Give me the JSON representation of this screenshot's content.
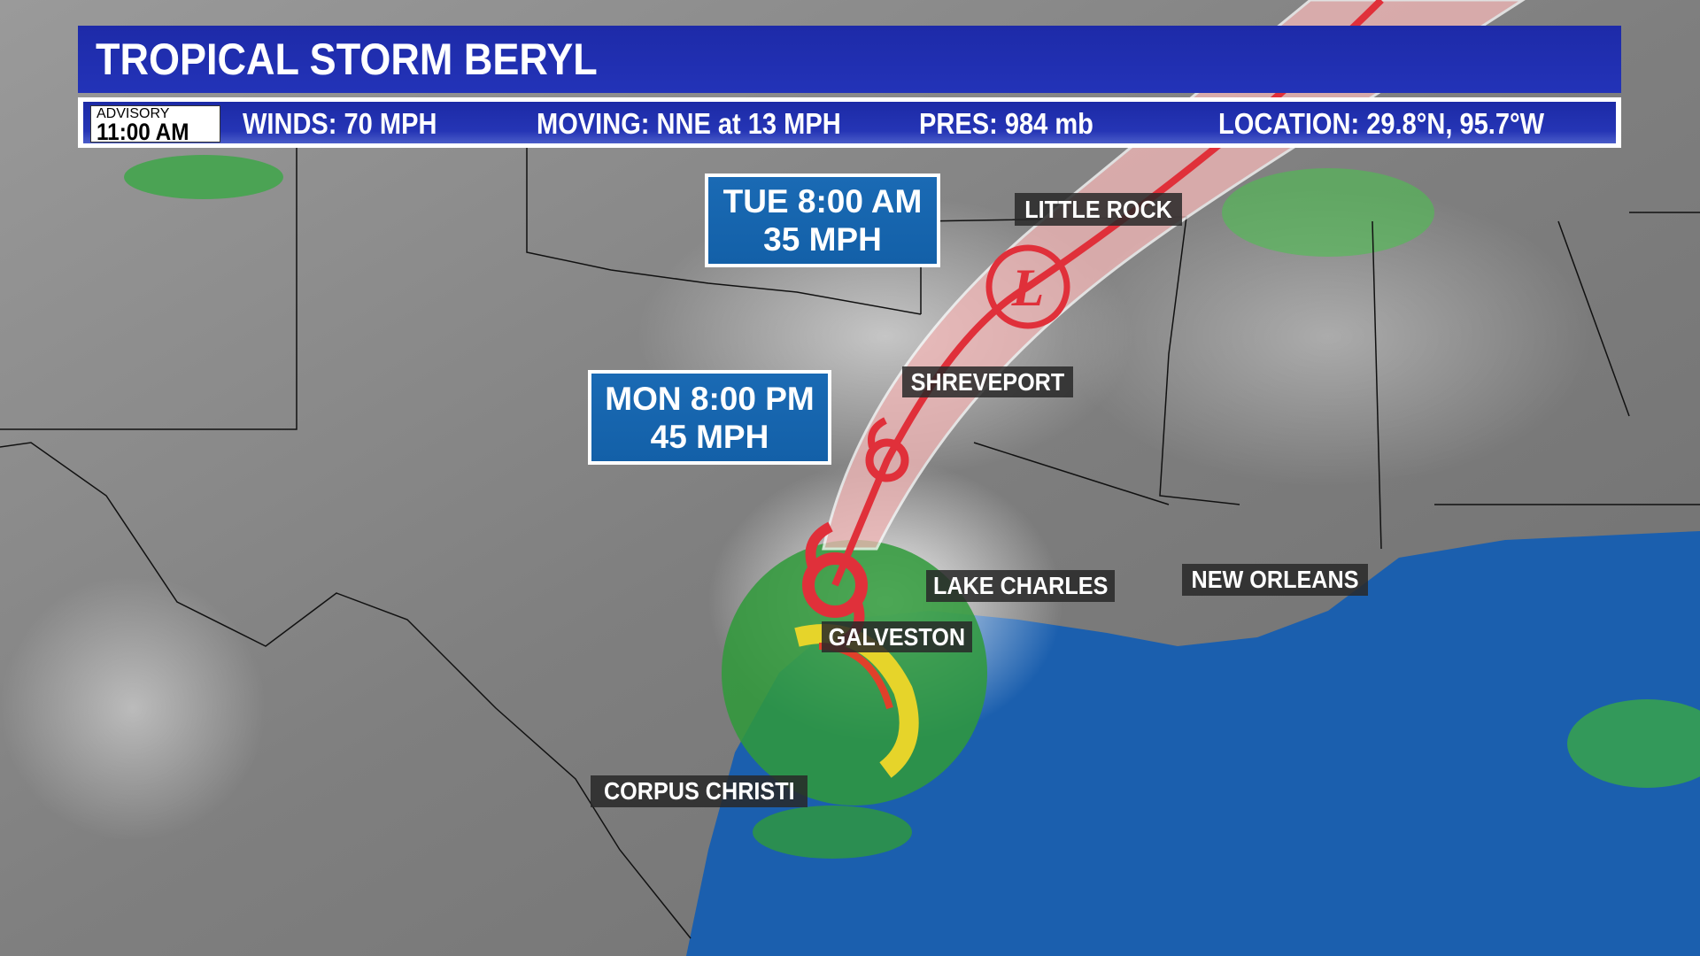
{
  "title": "TROPICAL STORM BERYL",
  "advisory": {
    "label": "ADVISORY",
    "time": "11:00 AM"
  },
  "stats": {
    "winds": "WINDS: 70 MPH",
    "moving": "MOVING:  NNE at 13 MPH",
    "pressure": "PRES: 984 mb",
    "location": "LOCATION: 29.8°N, 95.7°W"
  },
  "forecast_points": [
    {
      "time": "TUE 8:00 AM",
      "wind": "35 MPH"
    },
    {
      "time": "MON 8:00 PM",
      "wind": "45 MPH"
    }
  ],
  "cities": [
    "LITTLE ROCK",
    "SHREVEPORT",
    "LAKE CHARLES",
    "NEW ORLEANS",
    "GALVESTON",
    "CORPUS CHRISTI"
  ],
  "colors": {
    "banner": "#1d2aa8",
    "forecast_box": "#1a6ab4",
    "cone": "#f4b8b8",
    "track": "#e0303a",
    "gulf": "#1b5fae"
  },
  "icons": {
    "storm": "tropical-storm-icon",
    "low": "low-pressure-icon"
  }
}
